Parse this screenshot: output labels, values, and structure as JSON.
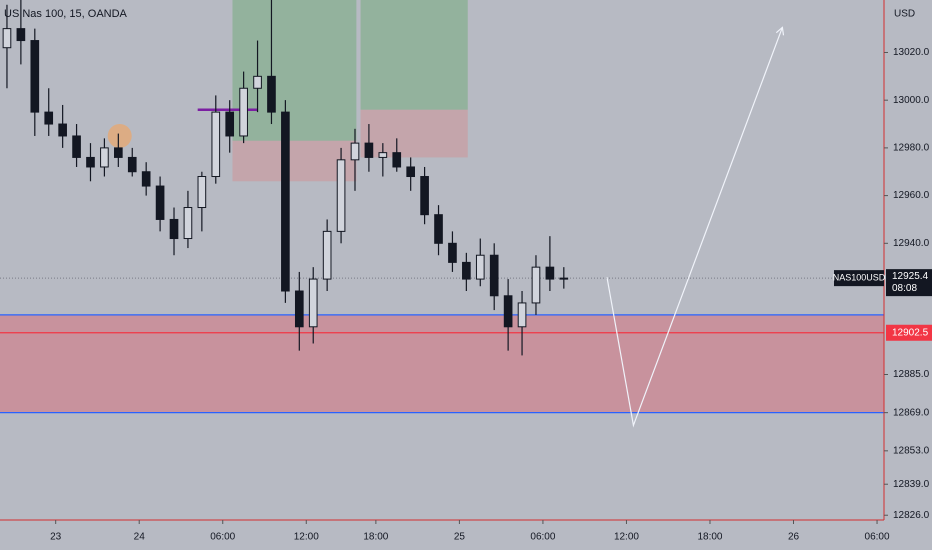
{
  "chart_data": {
    "type": "candlestick",
    "title": "US Nas 100, 15, OANDA",
    "currency": "USD",
    "symbol": "NAS100USD",
    "countdown": "08:08",
    "last_price": 12925.4,
    "candle_color": "#131722",
    "xlim": [
      0,
      63.5
    ],
    "ylim": [
      12824,
      13042
    ],
    "xticks": [
      {
        "value": 4,
        "label": "23"
      },
      {
        "value": 10,
        "label": "24"
      },
      {
        "value": 16,
        "label": "06:00"
      },
      {
        "value": 22,
        "label": "12:00"
      },
      {
        "value": 27,
        "label": "18:00"
      },
      {
        "value": 33,
        "label": "25"
      },
      {
        "value": 39,
        "label": "06:00"
      },
      {
        "value": 45,
        "label": "12:00"
      },
      {
        "value": 51,
        "label": "18:00"
      },
      {
        "value": 57,
        "label": "26"
      },
      {
        "value": 63,
        "label": "06:00"
      }
    ],
    "yticks": [
      {
        "value": 13020,
        "label": "13020.0"
      },
      {
        "value": 13000,
        "label": "13000.0"
      },
      {
        "value": 12980,
        "label": "12980.0"
      },
      {
        "value": 12960,
        "label": "12960.0"
      },
      {
        "value": 12940,
        "label": "12940.0"
      },
      {
        "value": 12885,
        "label": "12885.0"
      },
      {
        "value": 12869,
        "label": "12869.0"
      },
      {
        "value": 12853,
        "label": "12853.0"
      },
      {
        "value": 12839,
        "label": "12839.0"
      },
      {
        "value": 12826,
        "label": "12826.0"
      }
    ],
    "x": [
      0.5,
      1.5,
      2.5,
      3.5,
      4.5,
      5.5,
      6.5,
      7.5,
      8.5,
      9.5,
      10.5,
      11.5,
      12.5,
      13.5,
      14.5,
      15.5,
      16.5,
      17.5,
      18.5,
      19.5,
      20.5,
      21.5,
      22.5,
      23.5,
      24.5,
      25.5,
      26.5,
      27.5,
      28.5,
      29.5,
      30.5,
      31.5,
      32.5,
      33.5,
      34.5,
      35.5,
      36.5,
      37.5,
      38.5,
      39.5,
      40.5
    ],
    "open": [
      13022,
      13030,
      13025,
      12995,
      12990,
      12985,
      12976,
      12972,
      12980,
      12976,
      12970,
      12964,
      12950,
      12942,
      12955,
      12968,
      12995,
      12985,
      13005,
      13010,
      12995,
      12920,
      12905,
      12925,
      12945,
      12975,
      12982,
      12976,
      12978,
      12972,
      12968,
      12952,
      12940,
      12932,
      12925,
      12935,
      12918,
      12905,
      12915,
      12930,
      12925
    ],
    "high": [
      13040,
      13042,
      13030,
      13005,
      12998,
      12990,
      12982,
      12984,
      12986,
      12980,
      12974,
      12968,
      12955,
      12962,
      12970,
      13002,
      13000,
      13012,
      13025,
      13042,
      13000,
      12928,
      12930,
      12950,
      12980,
      12988,
      12990,
      12982,
      12984,
      12976,
      12972,
      12956,
      12945,
      12936,
      12942,
      12940,
      12925,
      12920,
      12935,
      12943,
      12930
    ],
    "low": [
      13005,
      13015,
      12985,
      12985,
      12980,
      12972,
      12966,
      12968,
      12972,
      12968,
      12960,
      12945,
      12935,
      12938,
      12945,
      12965,
      12978,
      12982,
      12995,
      12990,
      12915,
      12895,
      12898,
      12920,
      12940,
      12962,
      12970,
      12968,
      12970,
      12962,
      12948,
      12935,
      12928,
      12920,
      12922,
      12912,
      12895,
      12893,
      12910,
      12920,
      12921
    ],
    "close": [
      13030,
      13025,
      12995,
      12990,
      12985,
      12976,
      12972,
      12980,
      12976,
      12970,
      12964,
      12950,
      12942,
      12955,
      12968,
      12995,
      12985,
      13005,
      13010,
      12995,
      12920,
      12905,
      12925,
      12945,
      12975,
      12982,
      12976,
      12978,
      12972,
      12968,
      12952,
      12940,
      12932,
      12925,
      12935,
      12918,
      12905,
      12915,
      12930,
      12925,
      12925.4
    ],
    "zone": {
      "from": 12910,
      "to": 12869,
      "color": "#f23645"
    },
    "levels": [
      {
        "value": 12910,
        "color": "#2962ff"
      },
      {
        "value": 12902.5,
        "color": "#f23645"
      },
      {
        "value": 12869,
        "color": "#2962ff"
      }
    ],
    "positions": [
      {
        "x": [
          16.7,
          25.6
        ],
        "top": 13042,
        "entry": 12983,
        "bottom": 12966
      },
      {
        "x": [
          25.9,
          33.6
        ],
        "top": 13042,
        "entry": 12996,
        "bottom": 12976
      }
    ],
    "marker_line": {
      "x": [
        14.2,
        18.5
      ],
      "value": 12996,
      "color": "#7b1fa2"
    },
    "marker_circle": {
      "x": 8.6,
      "value": 12985,
      "color": "#f5a45a"
    },
    "arrow": {
      "x": [
        43.6,
        45.5,
        56.2
      ],
      "values": [
        12925.8,
        12863.7,
        13030.5
      ]
    }
  }
}
